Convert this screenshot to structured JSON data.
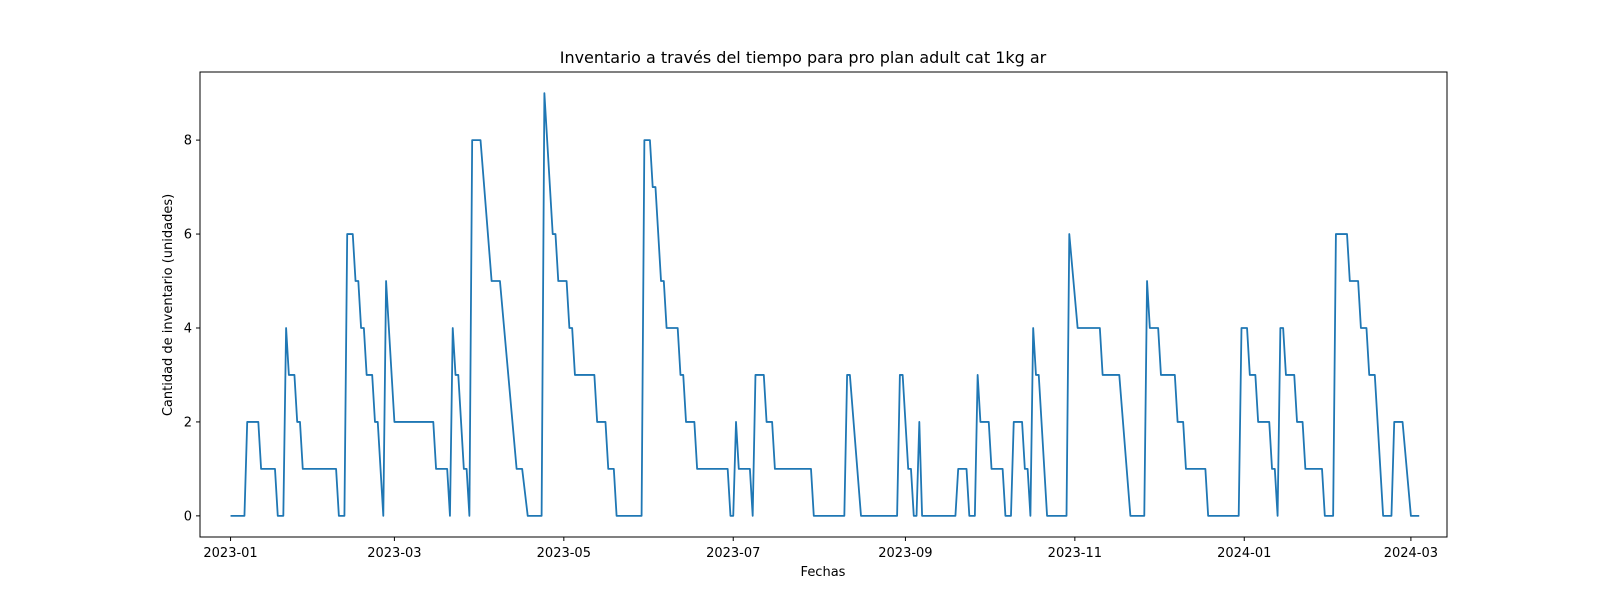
{
  "chart_data": {
    "type": "line",
    "title": "Inventario a través del tiempo para pro plan adult cat 1kg ar",
    "xlabel": "Fechas",
    "ylabel": "Cantidad de inventario (unidades)",
    "x_ticks": [
      "2023-01-01",
      "2023-03-01",
      "2023-05-01",
      "2023-07-01",
      "2023-09-01",
      "2023-11-01",
      "2024-01-01",
      "2024-03-01"
    ],
    "x_tick_labels": [
      "2023-01",
      "2023-03",
      "2023-05",
      "2023-07",
      "2023-09",
      "2023-11",
      "2024-01",
      "2024-03"
    ],
    "y_ticks": [
      0,
      2,
      4,
      6,
      8
    ],
    "xlim": [
      "2022-12-21",
      "2024-03-14"
    ],
    "ylim": [
      -0.45,
      9.45
    ],
    "grid": false,
    "series": [
      {
        "color": "#1f77b4",
        "points": [
          [
            "2023-01-01",
            0
          ],
          [
            "2023-01-06",
            0
          ],
          [
            "2023-01-07",
            2
          ],
          [
            "2023-01-11",
            2
          ],
          [
            "2023-01-12",
            1
          ],
          [
            "2023-01-17",
            1
          ],
          [
            "2023-01-18",
            0
          ],
          [
            "2023-01-20",
            0
          ],
          [
            "2023-01-21",
            4
          ],
          [
            "2023-01-22",
            3
          ],
          [
            "2023-01-24",
            3
          ],
          [
            "2023-01-25",
            2
          ],
          [
            "2023-01-26",
            2
          ],
          [
            "2023-01-27",
            1
          ],
          [
            "2023-02-08",
            1
          ],
          [
            "2023-02-09",
            0
          ],
          [
            "2023-02-11",
            0
          ],
          [
            "2023-02-12",
            6
          ],
          [
            "2023-02-14",
            6
          ],
          [
            "2023-02-15",
            5
          ],
          [
            "2023-02-16",
            5
          ],
          [
            "2023-02-17",
            4
          ],
          [
            "2023-02-18",
            4
          ],
          [
            "2023-02-19",
            3
          ],
          [
            "2023-02-21",
            3
          ],
          [
            "2023-02-22",
            2
          ],
          [
            "2023-02-23",
            2
          ],
          [
            "2023-02-25",
            0
          ],
          [
            "2023-02-26",
            5
          ],
          [
            "2023-03-01",
            2
          ],
          [
            "2023-03-15",
            2
          ],
          [
            "2023-03-16",
            1
          ],
          [
            "2023-03-20",
            1
          ],
          [
            "2023-03-21",
            0
          ],
          [
            "2023-03-22",
            4
          ],
          [
            "2023-03-23",
            3
          ],
          [
            "2023-03-24",
            3
          ],
          [
            "2023-03-26",
            1
          ],
          [
            "2023-03-27",
            1
          ],
          [
            "2023-03-28",
            0
          ],
          [
            "2023-03-29",
            8
          ],
          [
            "2023-04-01",
            8
          ],
          [
            "2023-04-05",
            5
          ],
          [
            "2023-04-08",
            5
          ],
          [
            "2023-04-14",
            1
          ],
          [
            "2023-04-16",
            1
          ],
          [
            "2023-04-18",
            0
          ],
          [
            "2023-04-23",
            0
          ],
          [
            "2023-04-24",
            9
          ],
          [
            "2023-04-27",
            6
          ],
          [
            "2023-04-28",
            6
          ],
          [
            "2023-04-29",
            5
          ],
          [
            "2023-05-02",
            5
          ],
          [
            "2023-05-03",
            4
          ],
          [
            "2023-05-04",
            4
          ],
          [
            "2023-05-05",
            3
          ],
          [
            "2023-05-12",
            3
          ],
          [
            "2023-05-13",
            2
          ],
          [
            "2023-05-16",
            2
          ],
          [
            "2023-05-17",
            1
          ],
          [
            "2023-05-19",
            1
          ],
          [
            "2023-05-20",
            0
          ],
          [
            "2023-05-29",
            0
          ],
          [
            "2023-05-30",
            8
          ],
          [
            "2023-06-01",
            8
          ],
          [
            "2023-06-02",
            7
          ],
          [
            "2023-06-03",
            7
          ],
          [
            "2023-06-05",
            5
          ],
          [
            "2023-06-06",
            5
          ],
          [
            "2023-06-07",
            4
          ],
          [
            "2023-06-11",
            4
          ],
          [
            "2023-06-12",
            3
          ],
          [
            "2023-06-13",
            3
          ],
          [
            "2023-06-14",
            2
          ],
          [
            "2023-06-17",
            2
          ],
          [
            "2023-06-18",
            1
          ],
          [
            "2023-06-29",
            1
          ],
          [
            "2023-06-30",
            0
          ],
          [
            "2023-07-01",
            0
          ],
          [
            "2023-07-02",
            2
          ],
          [
            "2023-07-03",
            1
          ],
          [
            "2023-07-07",
            1
          ],
          [
            "2023-07-08",
            0
          ],
          [
            "2023-07-09",
            3
          ],
          [
            "2023-07-12",
            3
          ],
          [
            "2023-07-13",
            2
          ],
          [
            "2023-07-15",
            2
          ],
          [
            "2023-07-16",
            1
          ],
          [
            "2023-07-29",
            1
          ],
          [
            "2023-07-30",
            0
          ],
          [
            "2023-08-10",
            0
          ],
          [
            "2023-08-11",
            3
          ],
          [
            "2023-08-12",
            3
          ],
          [
            "2023-08-16",
            0
          ],
          [
            "2023-08-29",
            0
          ],
          [
            "2023-08-30",
            3
          ],
          [
            "2023-08-31",
            3
          ],
          [
            "2023-09-02",
            1
          ],
          [
            "2023-09-03",
            1
          ],
          [
            "2023-09-04",
            0
          ],
          [
            "2023-09-05",
            0
          ],
          [
            "2023-09-06",
            2
          ],
          [
            "2023-09-07",
            0
          ],
          [
            "2023-09-19",
            0
          ],
          [
            "2023-09-20",
            1
          ],
          [
            "2023-09-23",
            1
          ],
          [
            "2023-09-24",
            0
          ],
          [
            "2023-09-26",
            0
          ],
          [
            "2023-09-27",
            3
          ],
          [
            "2023-09-28",
            2
          ],
          [
            "2023-10-01",
            2
          ],
          [
            "2023-10-02",
            1
          ],
          [
            "2023-10-06",
            1
          ],
          [
            "2023-10-07",
            0
          ],
          [
            "2023-10-09",
            0
          ],
          [
            "2023-10-10",
            2
          ],
          [
            "2023-10-13",
            2
          ],
          [
            "2023-10-14",
            1
          ],
          [
            "2023-10-15",
            1
          ],
          [
            "2023-10-16",
            0
          ],
          [
            "2023-10-17",
            4
          ],
          [
            "2023-10-18",
            3
          ],
          [
            "2023-10-19",
            3
          ],
          [
            "2023-10-22",
            0
          ],
          [
            "2023-10-29",
            0
          ],
          [
            "2023-10-30",
            6
          ],
          [
            "2023-11-02",
            4
          ],
          [
            "2023-11-10",
            4
          ],
          [
            "2023-11-11",
            3
          ],
          [
            "2023-11-17",
            3
          ],
          [
            "2023-11-21",
            0
          ],
          [
            "2023-11-26",
            0
          ],
          [
            "2023-11-27",
            5
          ],
          [
            "2023-11-28",
            4
          ],
          [
            "2023-12-01",
            4
          ],
          [
            "2023-12-02",
            3
          ],
          [
            "2023-12-07",
            3
          ],
          [
            "2023-12-08",
            2
          ],
          [
            "2023-12-10",
            2
          ],
          [
            "2023-12-11",
            1
          ],
          [
            "2023-12-18",
            1
          ],
          [
            "2023-12-19",
            0
          ],
          [
            "2023-12-30",
            0
          ],
          [
            "2023-12-31",
            4
          ],
          [
            "2024-01-02",
            4
          ],
          [
            "2024-01-03",
            3
          ],
          [
            "2024-01-05",
            3
          ],
          [
            "2024-01-06",
            2
          ],
          [
            "2024-01-10",
            2
          ],
          [
            "2024-01-11",
            1
          ],
          [
            "2024-01-12",
            1
          ],
          [
            "2024-01-13",
            0
          ],
          [
            "2024-01-14",
            4
          ],
          [
            "2024-01-15",
            4
          ],
          [
            "2024-01-16",
            3
          ],
          [
            "2024-01-19",
            3
          ],
          [
            "2024-01-20",
            2
          ],
          [
            "2024-01-22",
            2
          ],
          [
            "2024-01-23",
            1
          ],
          [
            "2024-01-29",
            1
          ],
          [
            "2024-01-30",
            0
          ],
          [
            "2024-02-02",
            0
          ],
          [
            "2024-02-03",
            6
          ],
          [
            "2024-02-07",
            6
          ],
          [
            "2024-02-08",
            5
          ],
          [
            "2024-02-11",
            5
          ],
          [
            "2024-02-12",
            4
          ],
          [
            "2024-02-14",
            4
          ],
          [
            "2024-02-15",
            3
          ],
          [
            "2024-02-17",
            3
          ],
          [
            "2024-02-20",
            0
          ],
          [
            "2024-02-23",
            0
          ],
          [
            "2024-02-24",
            2
          ],
          [
            "2024-02-27",
            2
          ],
          [
            "2024-03-01",
            0
          ],
          [
            "2024-03-04",
            0
          ]
        ]
      }
    ]
  }
}
